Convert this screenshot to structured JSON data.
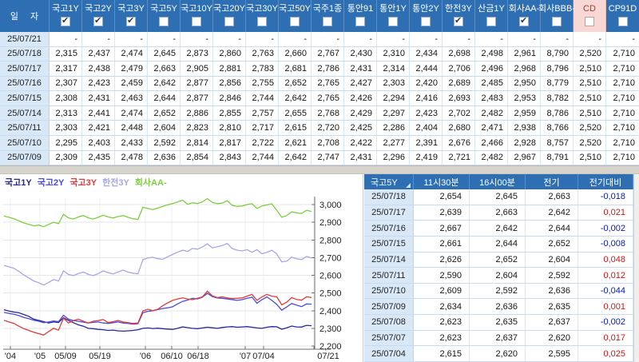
{
  "table": {
    "date_header": "일 자",
    "columns": [
      {
        "label": "국고1Y",
        "checked": true,
        "highlight": false
      },
      {
        "label": "국고2Y",
        "checked": true,
        "highlight": false
      },
      {
        "label": "국고3Y",
        "checked": true,
        "highlight": false
      },
      {
        "label": "국고5Y",
        "checked": false,
        "highlight": false
      },
      {
        "label": "국고10Y",
        "checked": false,
        "highlight": false
      },
      {
        "label": "국고20Y",
        "checked": false,
        "highlight": false
      },
      {
        "label": "국고30Y",
        "checked": false,
        "highlight": false
      },
      {
        "label": "국고50Y",
        "checked": false,
        "highlight": false
      },
      {
        "label": "국주1종",
        "checked": false,
        "highlight": false
      },
      {
        "label": "통안91",
        "checked": false,
        "highlight": false
      },
      {
        "label": "통안1Y",
        "checked": false,
        "highlight": false
      },
      {
        "label": "통안2Y",
        "checked": false,
        "highlight": false
      },
      {
        "label": "한전3Y",
        "checked": true,
        "highlight": false
      },
      {
        "label": "산금1Y",
        "checked": false,
        "highlight": false
      },
      {
        "label": "회사AA-",
        "checked": true,
        "highlight": false
      },
      {
        "label": "회사BBB-",
        "checked": false,
        "highlight": false
      },
      {
        "label": "CD",
        "checked": false,
        "highlight": true
      },
      {
        "label": "CP91D",
        "checked": false,
        "highlight": false
      }
    ],
    "rows": [
      [
        "25/07/21",
        "-",
        "-",
        "-",
        "-",
        "-",
        "-",
        "-",
        "-",
        "-",
        "-",
        "-",
        "-",
        "-",
        "-",
        "-",
        "-",
        "-",
        "-"
      ],
      [
        "25/07/18",
        "2,315",
        "2,437",
        "2,474",
        "2,645",
        "2,873",
        "2,860",
        "2,763",
        "2,660",
        "2,767",
        "2,430",
        "2,310",
        "2,434",
        "2,698",
        "2,498",
        "2,961",
        "8,790",
        "2,520",
        "2,710"
      ],
      [
        "25/07/17",
        "2,317",
        "2,438",
        "2,479",
        "2,663",
        "2,905",
        "2,881",
        "2,783",
        "2,681",
        "2,786",
        "2,431",
        "2,314",
        "2,444",
        "2,706",
        "2,496",
        "2,968",
        "8,796",
        "2,510",
        "2,710"
      ],
      [
        "25/07/16",
        "2,307",
        "2,423",
        "2,459",
        "2,642",
        "2,877",
        "2,856",
        "2,755",
        "2,652",
        "2,765",
        "2,427",
        "2,303",
        "2,420",
        "2,689",
        "2,485",
        "2,950",
        "8,779",
        "2,510",
        "2,710"
      ],
      [
        "25/07/15",
        "2,308",
        "2,431",
        "2,463",
        "2,644",
        "2,877",
        "2,846",
        "2,744",
        "2,642",
        "2,765",
        "2,426",
        "2,294",
        "2,416",
        "2,693",
        "2,483",
        "2,953",
        "8,782",
        "2,510",
        "2,710"
      ],
      [
        "25/07/14",
        "2,313",
        "2,441",
        "2,474",
        "2,652",
        "2,886",
        "2,855",
        "2,757",
        "2,655",
        "2,768",
        "2,429",
        "2,297",
        "2,423",
        "2,702",
        "2,482",
        "2,959",
        "8,786",
        "2,510",
        "2,710"
      ],
      [
        "25/07/11",
        "2,303",
        "2,421",
        "2,448",
        "2,604",
        "2,823",
        "2,810",
        "2,717",
        "2,615",
        "2,720",
        "2,425",
        "2,286",
        "2,404",
        "2,680",
        "2,471",
        "2,938",
        "8,766",
        "2,520",
        "2,710"
      ],
      [
        "25/07/10",
        "2,295",
        "2,403",
        "2,433",
        "2,592",
        "2,814",
        "2,817",
        "2,722",
        "2,621",
        "2,708",
        "2,422",
        "2,277",
        "2,391",
        "2,676",
        "2,466",
        "2,928",
        "8,757",
        "2,520",
        "2,710"
      ],
      [
        "25/07/09",
        "2,309",
        "2,435",
        "2,478",
        "2,636",
        "2,854",
        "2,843",
        "2,744",
        "2,642",
        "2,747",
        "2,431",
        "2,296",
        "2,419",
        "2,721",
        "2,482",
        "2,967",
        "8,791",
        "2,510",
        "2,710"
      ]
    ]
  },
  "chart_data": {
    "type": "line",
    "legend_position": "top-left",
    "ylim": [
      2.2,
      3.0
    ],
    "y_ticks": [
      {
        "label": "3,000",
        "value": 3.0
      },
      {
        "label": "2,900",
        "value": 2.9
      },
      {
        "label": "2,800",
        "value": 2.8
      },
      {
        "label": "2,700",
        "value": 2.7
      },
      {
        "label": "2,600",
        "value": 2.6
      },
      {
        "label": "2,500",
        "value": 2.5
      },
      {
        "label": "2,400",
        "value": 2.4
      },
      {
        "label": "2,300",
        "value": 2.3
      },
      {
        "label": "2,200",
        "value": 2.2
      }
    ],
    "x_ticks": [
      {
        "label": "'04",
        "x": 13
      },
      {
        "label": "'05",
        "x": 50
      },
      {
        "label": "05/09",
        "x": 82
      },
      {
        "label": "05/19",
        "x": 125
      },
      {
        "label": "'06",
        "x": 182
      },
      {
        "label": "06/10",
        "x": 215
      },
      {
        "label": "06/18",
        "x": 248
      },
      {
        "label": "'07",
        "x": 307
      },
      {
        "label": "07/04",
        "x": 330
      },
      {
        "label": "07/21",
        "x": 393,
        "label_x": 411
      }
    ],
    "series": [
      {
        "name": "한전3Y",
        "color": "#A6A6EF",
        "values": [
          2.655,
          2.648,
          2.64,
          2.622,
          2.602,
          2.585,
          2.568,
          2.558,
          2.545,
          2.56,
          2.576,
          2.568,
          2.625,
          2.605,
          2.598,
          2.61,
          2.618,
          2.605,
          2.598,
          2.61,
          2.625,
          2.615,
          2.608,
          2.618,
          2.63,
          2.618,
          2.612,
          2.608,
          2.688,
          2.698,
          2.702,
          2.694,
          2.69,
          2.705,
          2.718,
          2.73,
          2.742,
          2.735,
          2.752,
          2.748,
          2.76,
          2.778,
          2.755,
          2.762,
          2.768,
          2.78,
          2.752,
          2.742,
          2.738,
          2.745,
          2.73,
          2.745,
          2.722,
          2.73,
          2.742,
          2.721,
          2.676,
          2.68,
          2.702,
          2.693,
          2.689,
          2.706,
          2.698
        ]
      },
      {
        "name": "회사AA-",
        "color": "#7FCE3F",
        "values": [
          2.935,
          2.928,
          2.92,
          2.908,
          2.896,
          2.888,
          2.88,
          2.884,
          2.875,
          2.888,
          2.9,
          2.892,
          2.945,
          2.925,
          2.918,
          2.93,
          2.938,
          2.925,
          2.918,
          2.928,
          2.94,
          2.93,
          2.924,
          2.932,
          2.938,
          2.928,
          2.92,
          2.916,
          2.985,
          2.978,
          2.972,
          2.98,
          2.99,
          2.998,
          3.006,
          3.015,
          3.025,
          3.002,
          3.01,
          3.006,
          3.016,
          3.034,
          3.012,
          3.005,
          3.008,
          3.022,
          2.996,
          2.99,
          2.992,
          3.0,
          3.005,
          2.978,
          2.992,
          2.998,
          3.004,
          2.967,
          2.928,
          2.938,
          2.959,
          2.953,
          2.95,
          2.968,
          2.961
        ]
      },
      {
        "name": "국고1Y",
        "color": "#26269B",
        "values": [
          2.405,
          2.398,
          2.392,
          2.388,
          2.378,
          2.368,
          2.352,
          2.345,
          2.338,
          2.33,
          2.336,
          2.333,
          2.36,
          2.345,
          2.332,
          2.32,
          2.312,
          2.3,
          2.298,
          2.294,
          2.292,
          2.288,
          2.29,
          2.286,
          2.284,
          2.286,
          2.288,
          2.292,
          2.3,
          2.302,
          2.299,
          2.301,
          2.298,
          2.296,
          2.294,
          2.3,
          2.308,
          2.304,
          2.3,
          2.298,
          2.302,
          2.306,
          2.303,
          2.3,
          2.305,
          2.308,
          2.31,
          2.306,
          2.308,
          2.31,
          2.306,
          2.302,
          2.3,
          2.306,
          2.31,
          2.309,
          2.295,
          2.303,
          2.313,
          2.308,
          2.307,
          2.317,
          2.315
        ]
      },
      {
        "name": "국고2Y",
        "color": "#4A4AE0",
        "values": [
          2.39,
          2.385,
          2.38,
          2.372,
          2.362,
          2.355,
          2.346,
          2.34,
          2.332,
          2.336,
          2.342,
          2.338,
          2.374,
          2.352,
          2.344,
          2.34,
          2.335,
          2.33,
          2.334,
          2.336,
          2.33,
          2.328,
          2.332,
          2.336,
          2.33,
          2.328,
          2.324,
          2.326,
          2.388,
          2.396,
          2.4,
          2.406,
          2.412,
          2.416,
          2.422,
          2.438,
          2.452,
          2.46,
          2.47,
          2.466,
          2.476,
          2.498,
          2.48,
          2.472,
          2.47,
          2.466,
          2.462,
          2.458,
          2.462,
          2.47,
          2.476,
          2.442,
          2.462,
          2.478,
          2.458,
          2.435,
          2.403,
          2.421,
          2.441,
          2.431,
          2.423,
          2.438,
          2.437
        ]
      },
      {
        "name": "국고3Y",
        "color": "#E03A3A",
        "values": [
          2.345,
          2.336,
          2.328,
          2.312,
          2.298,
          2.288,
          2.278,
          2.27,
          2.262,
          2.282,
          2.3,
          2.29,
          2.358,
          2.33,
          2.344,
          2.352,
          2.34,
          2.33,
          2.34,
          2.344,
          2.35,
          2.332,
          2.338,
          2.344,
          2.336,
          2.332,
          2.328,
          2.33,
          2.398,
          2.408,
          2.4,
          2.408,
          2.428,
          2.444,
          2.458,
          2.466,
          2.472,
          2.466,
          2.462,
          2.47,
          2.478,
          2.51,
          2.484,
          2.474,
          2.478,
          2.472,
          2.468,
          2.47,
          2.472,
          2.482,
          2.492,
          2.458,
          2.478,
          2.492,
          2.482,
          2.478,
          2.433,
          2.448,
          2.474,
          2.463,
          2.459,
          2.479,
          2.474
        ]
      }
    ],
    "legend": [
      {
        "label": "국고1Y",
        "color": "#26269B"
      },
      {
        "label": "국고2Y",
        "color": "#4A4AE0"
      },
      {
        "label": "국고3Y",
        "color": "#E03A3A"
      },
      {
        "label": "한전3Y",
        "color": "#A6A6EF"
      },
      {
        "label": "회사AA-",
        "color": "#7FCE3F"
      }
    ]
  },
  "detail_table": {
    "columns": [
      "국고5Y",
      "11시30분",
      "16시00분",
      "전기",
      "전기대비"
    ],
    "rows": [
      [
        "25/07/18",
        "2,654",
        "2,645",
        "2,663",
        "-0,018"
      ],
      [
        "25/07/17",
        "2,639",
        "2,663",
        "2,642",
        "0,021"
      ],
      [
        "25/07/16",
        "2,667",
        "2,642",
        "2,644",
        "-0,002"
      ],
      [
        "25/07/15",
        "2,661",
        "2,644",
        "2,652",
        "-0,008"
      ],
      [
        "25/07/14",
        "2,626",
        "2,652",
        "2,604",
        "0,048"
      ],
      [
        "25/07/11",
        "2,590",
        "2,604",
        "2,592",
        "0,012"
      ],
      [
        "25/07/10",
        "2,609",
        "2,592",
        "2,636",
        "-0,044"
      ],
      [
        "25/07/09",
        "2,634",
        "2,636",
        "2,635",
        "0,001"
      ],
      [
        "25/07/08",
        "2,623",
        "2,635",
        "2,637",
        "-0,002"
      ],
      [
        "25/07/07",
        "2,623",
        "2,637",
        "2,620",
        "0,017"
      ],
      [
        "25/07/04",
        "2,615",
        "2,620",
        "2,595",
        "0,025"
      ]
    ]
  },
  "colors": {
    "header_bg": "#2E6FB4",
    "date_col_bg": "#D9E8F7",
    "highlight_bg": "#F8D8D4",
    "highlight_text": "#A23A35",
    "change_up": "#D21414",
    "change_down": "#0018C8",
    "grid_line": "#E6E6E6",
    "axis": "#707070"
  }
}
